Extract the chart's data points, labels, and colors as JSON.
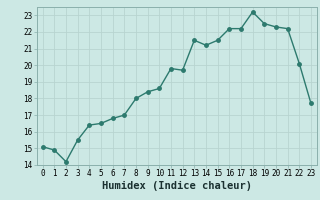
{
  "x": [
    0,
    1,
    2,
    3,
    4,
    5,
    6,
    7,
    8,
    9,
    10,
    11,
    12,
    13,
    14,
    15,
    16,
    17,
    18,
    19,
    20,
    21,
    22,
    23
  ],
  "y": [
    15.1,
    14.9,
    14.2,
    15.5,
    16.4,
    16.5,
    16.8,
    17.0,
    18.0,
    18.4,
    18.6,
    19.8,
    19.7,
    21.5,
    21.2,
    21.5,
    22.2,
    22.2,
    23.2,
    22.5,
    22.3,
    22.2,
    20.1,
    17.7
  ],
  "line_color": "#2d7a6e",
  "bg_color": "#cce8e4",
  "grid_color": "#b8d4d0",
  "xlabel": "Humidex (Indice chaleur)",
  "ylim": [
    14,
    23.5
  ],
  "xlim": [
    -0.5,
    23.5
  ],
  "yticks": [
    14,
    15,
    16,
    17,
    18,
    19,
    20,
    21,
    22,
    23
  ],
  "xticks": [
    0,
    1,
    2,
    3,
    4,
    5,
    6,
    7,
    8,
    9,
    10,
    11,
    12,
    13,
    14,
    15,
    16,
    17,
    18,
    19,
    20,
    21,
    22,
    23
  ],
  "marker_size": 2.5,
  "line_width": 1.0,
  "tick_fontsize": 5.5,
  "xlabel_fontsize": 7.5
}
